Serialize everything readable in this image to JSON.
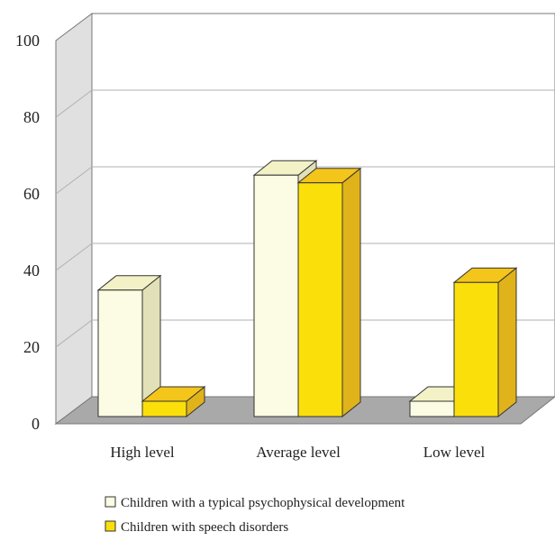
{
  "chart_data": {
    "type": "bar",
    "style": "3d-clustered-column",
    "categories": [
      "High level",
      "Average  level",
      "Low level"
    ],
    "series": [
      {
        "name": "Children with a typical psychophysical development",
        "values": [
          33,
          63,
          4
        ],
        "color": "#fcfbe3",
        "side_color": "#e1e0b8",
        "top_color": "#f3f2c6"
      },
      {
        "name": "Children with speech disorders",
        "values": [
          4,
          61,
          35
        ],
        "color": "#fbdf0a",
        "side_color": "#e0b31b",
        "top_color": "#f4c51a"
      }
    ],
    "yticks": [
      0,
      20,
      40,
      60,
      80,
      100
    ],
    "ylim": [
      0,
      100
    ],
    "grid": true,
    "legend": "bottom",
    "colors": {
      "back_wall": "#ffffff",
      "side_wall": "#e0e0e0",
      "floor": "#a9a9a9",
      "gridline": "#b0b0b0"
    }
  }
}
